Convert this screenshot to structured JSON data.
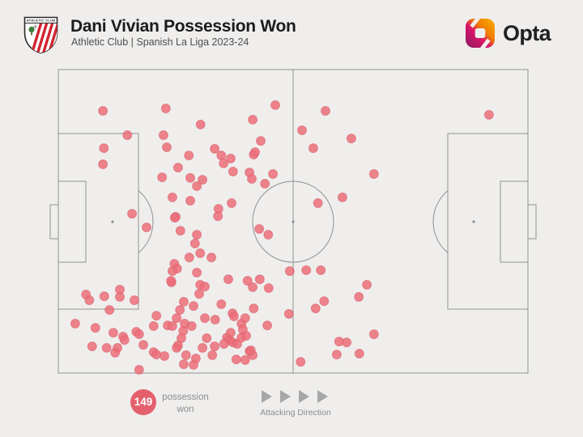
{
  "header": {
    "title": "Dani Vivian Possession Won",
    "subtitle": "Athletic Club | Spanish La Liga 2023-24",
    "crest_text": "ATHLETIC CLUB"
  },
  "brand": {
    "wordmark": "Opta"
  },
  "legend": {
    "count": "149",
    "count_label": "possession won",
    "attacking_direction_label": "Attacking Direction"
  },
  "colors": {
    "background": "#efeeed",
    "pitch_line": "#919191",
    "dot_fill": "#ec6e79",
    "dot_stroke": "#d75f6b",
    "badge_red": "#e5606d",
    "arrow_gray": "#a7a7a7",
    "text_dark": "#1b1b1b",
    "text_gray": "#4e4e4e",
    "legend_gray": "#8d8d8d",
    "crest_red": "#d0232e",
    "opta_magenta": "#8a1a60",
    "opta_pink": "#d9156b",
    "opta_orange": "#f07e00",
    "opta_yellow": "#f9b000"
  },
  "chart_data": {
    "type": "scatter",
    "title": "Dani Vivian Possession Won",
    "context": "Athletic Club | Spanish La Liga 2023-24",
    "total_events": 149,
    "attacking_direction": "left-to-right",
    "units": "x = % of pitch length (0 own goal line, 100 opposition goal line); y = % of pitch width (top to bottom)",
    "points": [
      [
        9.5,
        13.6
      ],
      [
        22.9,
        12.8
      ],
      [
        14.7,
        21.6
      ],
      [
        9.7,
        25.9
      ],
      [
        9.5,
        31.2
      ],
      [
        22.4,
        21.6
      ],
      [
        23.1,
        25.6
      ],
      [
        30.3,
        18.1
      ],
      [
        27.8,
        28.3
      ],
      [
        25.5,
        32.3
      ],
      [
        22.1,
        35.5
      ],
      [
        28.1,
        35.7
      ],
      [
        24.3,
        42.1
      ],
      [
        28.1,
        43.2
      ],
      [
        30.7,
        36.3
      ],
      [
        29.5,
        38.4
      ],
      [
        15.7,
        47.5
      ],
      [
        25.0,
        48.5
      ],
      [
        41.4,
        16.5
      ],
      [
        46.2,
        11.7
      ],
      [
        51.9,
        20.0
      ],
      [
        56.9,
        13.6
      ],
      [
        62.4,
        22.7
      ],
      [
        54.3,
        25.9
      ],
      [
        67.2,
        34.4
      ],
      [
        91.7,
        14.9
      ],
      [
        33.3,
        26.1
      ],
      [
        34.7,
        28.3
      ],
      [
        36.7,
        29.3
      ],
      [
        35.2,
        30.9
      ],
      [
        37.2,
        33.6
      ],
      [
        40.7,
        33.9
      ],
      [
        41.2,
        36.0
      ],
      [
        41.6,
        28.0
      ],
      [
        45.7,
        34.4
      ],
      [
        44.0,
        37.6
      ],
      [
        36.9,
        44.0
      ],
      [
        34.1,
        45.9
      ],
      [
        43.1,
        23.5
      ],
      [
        41.9,
        27.2
      ],
      [
        60.5,
        42.1
      ],
      [
        55.3,
        44.0
      ],
      [
        18.8,
        52.0
      ],
      [
        24.8,
        48.8
      ],
      [
        29.5,
        54.4
      ],
      [
        29.1,
        57.3
      ],
      [
        26.0,
        53.1
      ],
      [
        34.0,
        48.3
      ],
      [
        42.8,
        52.5
      ],
      [
        44.7,
        54.4
      ],
      [
        27.9,
        61.9
      ],
      [
        30.2,
        60.5
      ],
      [
        32.6,
        61.9
      ],
      [
        24.7,
        64.0
      ],
      [
        25.3,
        65.6
      ],
      [
        24.3,
        66.4
      ],
      [
        29.5,
        66.9
      ],
      [
        24.1,
        70.1
      ],
      [
        41.4,
        71.7
      ],
      [
        44.8,
        72.0
      ],
      [
        36.2,
        69.1
      ],
      [
        40.3,
        69.6
      ],
      [
        42.9,
        69.1
      ],
      [
        49.3,
        66.4
      ],
      [
        52.8,
        66.1
      ],
      [
        55.9,
        66.1
      ],
      [
        5.9,
        74.1
      ],
      [
        6.6,
        76.0
      ],
      [
        9.8,
        74.7
      ],
      [
        13.1,
        72.5
      ],
      [
        13.1,
        74.9
      ],
      [
        16.2,
        76.0
      ],
      [
        10.9,
        79.2
      ],
      [
        3.6,
        83.7
      ],
      [
        20.9,
        81.1
      ],
      [
        24.0,
        69.6
      ],
      [
        30.2,
        70.9
      ],
      [
        31.2,
        71.5
      ],
      [
        30.0,
        73.9
      ],
      [
        26.7,
        76.5
      ],
      [
        28.8,
        77.9
      ],
      [
        25.9,
        79.2
      ],
      [
        25.2,
        81.9
      ],
      [
        23.3,
        84.3
      ],
      [
        24.3,
        84.5
      ],
      [
        20.3,
        84.5
      ],
      [
        26.9,
        83.7
      ],
      [
        28.4,
        84.5
      ],
      [
        26.6,
        86.1
      ],
      [
        26.2,
        88.5
      ],
      [
        25.5,
        90.9
      ],
      [
        25.2,
        91.7
      ],
      [
        20.3,
        93.1
      ],
      [
        20.9,
        93.9
      ],
      [
        22.6,
        94.4
      ],
      [
        16.6,
        86.4
      ],
      [
        17.2,
        87.2
      ],
      [
        13.8,
        88.0
      ],
      [
        14.1,
        89.1
      ],
      [
        11.7,
        86.7
      ],
      [
        12.6,
        91.7
      ],
      [
        18.1,
        90.7
      ],
      [
        27.2,
        94.1
      ],
      [
        29.3,
        95.2
      ],
      [
        30.7,
        91.7
      ],
      [
        31.6,
        88.5
      ],
      [
        33.3,
        91.2
      ],
      [
        31.2,
        81.9
      ],
      [
        33.4,
        82.4
      ],
      [
        7.9,
        85.1
      ],
      [
        7.2,
        91.2
      ],
      [
        10.3,
        91.7
      ],
      [
        12.1,
        93.3
      ],
      [
        17.2,
        98.9
      ],
      [
        26.7,
        97.1
      ],
      [
        28.8,
        97.3
      ],
      [
        34.7,
        77.3
      ],
      [
        37.1,
        80.3
      ],
      [
        37.4,
        81.3
      ],
      [
        39.0,
        83.7
      ],
      [
        35.9,
        88.3
      ],
      [
        36.4,
        89.1
      ],
      [
        37.2,
        89.9
      ],
      [
        38.1,
        90.4
      ],
      [
        39.0,
        88.3
      ],
      [
        36.7,
        86.7
      ],
      [
        35.3,
        90.4
      ],
      [
        32.8,
        94.1
      ],
      [
        40.7,
        92.8
      ],
      [
        41.4,
        94.1
      ],
      [
        37.9,
        95.5
      ],
      [
        39.8,
        95.7
      ],
      [
        41.6,
        78.7
      ],
      [
        39.8,
        81.9
      ],
      [
        44.5,
        84.3
      ],
      [
        49.1,
        80.5
      ],
      [
        40.0,
        87.7
      ],
      [
        39.3,
        85.6
      ],
      [
        41.0,
        92.5
      ],
      [
        51.6,
        96.3
      ],
      [
        54.8,
        78.7
      ],
      [
        56.6,
        76.3
      ],
      [
        64.0,
        74.9
      ],
      [
        59.8,
        89.6
      ],
      [
        61.4,
        89.9
      ],
      [
        59.3,
        93.9
      ],
      [
        64.1,
        93.6
      ],
      [
        67.2,
        87.2
      ],
      [
        65.7,
        70.9
      ]
    ]
  }
}
